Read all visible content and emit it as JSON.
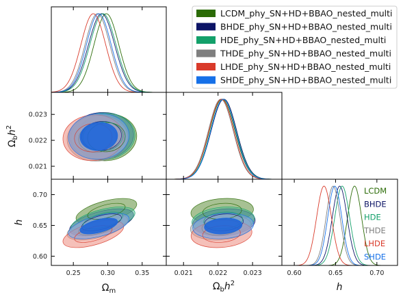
{
  "chart_data": {
    "type": "triangle-corner-plot",
    "parameters": [
      {
        "key": "om",
        "label": "Ω_m",
        "range": [
          0.218,
          0.385
        ],
        "ticks": [
          0.25,
          0.3,
          0.35
        ],
        "tick_labels": [
          "0.25",
          "0.30",
          "0.35"
        ]
      },
      {
        "key": "ob",
        "label": "Ω_b h^2",
        "range": [
          0.0205,
          0.02385
        ],
        "ticks": [
          0.021,
          0.022,
          0.023
        ],
        "tick_labels": [
          "0.021",
          "0.022",
          "0.023"
        ]
      },
      {
        "key": "h",
        "label": "h",
        "range": [
          0.585,
          0.725
        ],
        "ticks": [
          0.6,
          0.65,
          0.7
        ],
        "tick_labels": [
          "0.60",
          "0.65",
          "0.70"
        ]
      }
    ],
    "axis_labels": {
      "om_math": "Ω",
      "om_sub": "m",
      "ob_math": "Ω",
      "ob_sub": "b",
      "ob_tail": "h",
      "ob_sup": "2",
      "h_math": "h"
    },
    "series": [
      {
        "name": "LCDM_phy_SN+HD+BBAO_nested_multi",
        "short": "LCDM",
        "color": "#2b6b06",
        "fill": "#5e8e3a",
        "mean": {
          "om": 0.298,
          "ob": 0.02212,
          "h": 0.673
        },
        "sigma": {
          "om": 0.018,
          "ob": 0.00037,
          "h": 0.0085
        },
        "corr": {
          "om_ob": 0.05,
          "om_h": 0.55,
          "ob_h": 0.15
        }
      },
      {
        "name": "BHDE_phy_SN+HD+BBAO_nested_multi",
        "short": "BHDE",
        "color": "#0c1466",
        "fill": "#3b4499",
        "mean": {
          "om": 0.291,
          "ob": 0.02217,
          "h": 0.655
        },
        "sigma": {
          "om": 0.019,
          "ob": 0.00037,
          "h": 0.009
        },
        "corr": {
          "om_ob": 0.05,
          "om_h": 0.55,
          "ob_h": 0.15
        }
      },
      {
        "name": "HDE_phy_SN+HD+BBAO_nested_multi",
        "short": "HDE",
        "color": "#13a06a",
        "fill": "#55bf92",
        "mean": {
          "om": 0.293,
          "ob": 0.02215,
          "h": 0.658
        },
        "sigma": {
          "om": 0.019,
          "ob": 0.00037,
          "h": 0.009
        },
        "corr": {
          "om_ob": 0.05,
          "om_h": 0.55,
          "ob_h": 0.15
        }
      },
      {
        "name": "THDE_phy_SN+HD+BBAO_nested_multi",
        "short": "THDE",
        "color": "#7f7f7f",
        "fill": "#a9a9a9",
        "mean": {
          "om": 0.285,
          "ob": 0.02208,
          "h": 0.647
        },
        "sigma": {
          "om": 0.018,
          "ob": 0.00036,
          "h": 0.0085
        },
        "corr": {
          "om_ob": 0.05,
          "om_h": 0.55,
          "ob_h": 0.15
        }
      },
      {
        "name": "LHDE_phy_SN+HD+BBAO_nested_multi",
        "short": "LHDE",
        "color": "#d93a2a",
        "fill": "#ec8c80",
        "mean": {
          "om": 0.279,
          "ob": 0.0221,
          "h": 0.636
        },
        "sigma": {
          "om": 0.018,
          "ob": 0.00036,
          "h": 0.009
        },
        "corr": {
          "om_ob": 0.05,
          "om_h": 0.55,
          "ob_h": 0.15
        }
      },
      {
        "name": "SHDE_phy_SN+HD+BBAO_nested_multi",
        "short": "SHDE",
        "color": "#1670e8",
        "fill": "#7ea8e6",
        "mean": {
          "om": 0.287,
          "ob": 0.02215,
          "h": 0.649
        },
        "sigma": {
          "om": 0.018,
          "ob": 0.00036,
          "h": 0.0085
        },
        "corr": {
          "om_ob": 0.05,
          "om_h": 0.55,
          "ob_h": 0.15
        }
      }
    ],
    "legend_position": "top-right",
    "grid": false
  }
}
